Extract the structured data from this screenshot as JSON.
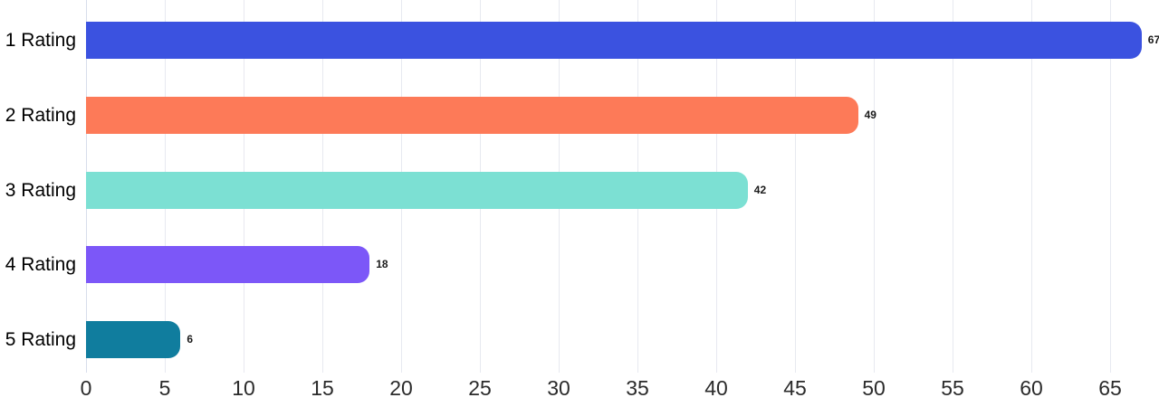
{
  "chart_data": {
    "type": "bar",
    "orientation": "horizontal",
    "title": "",
    "xlabel": "",
    "ylabel": "",
    "categories": [
      "1 Rating",
      "2 Rating",
      "3 Rating",
      "4 Rating",
      "5 Rating"
    ],
    "values": [
      67,
      49,
      42,
      18,
      6
    ],
    "bar_colors": [
      "#3b52e0",
      "#fd7a58",
      "#7ce0d3",
      "#7c57f8",
      "#107d9e"
    ],
    "x_ticks": [
      0,
      5,
      10,
      15,
      20,
      25,
      30,
      35,
      40,
      45,
      50,
      55,
      60,
      65
    ],
    "xlim": [
      0,
      68
    ],
    "grid": "vertical-only",
    "legend": "none",
    "value_labels_shown": true
  },
  "colors": {
    "background": "#ffffff",
    "gridline": "#e7e9f0",
    "zero_axis_line": "#d8ddeb",
    "category_label": "#000000",
    "value_label": "#1a1a1a",
    "tick_label": "#2b2b2b"
  }
}
